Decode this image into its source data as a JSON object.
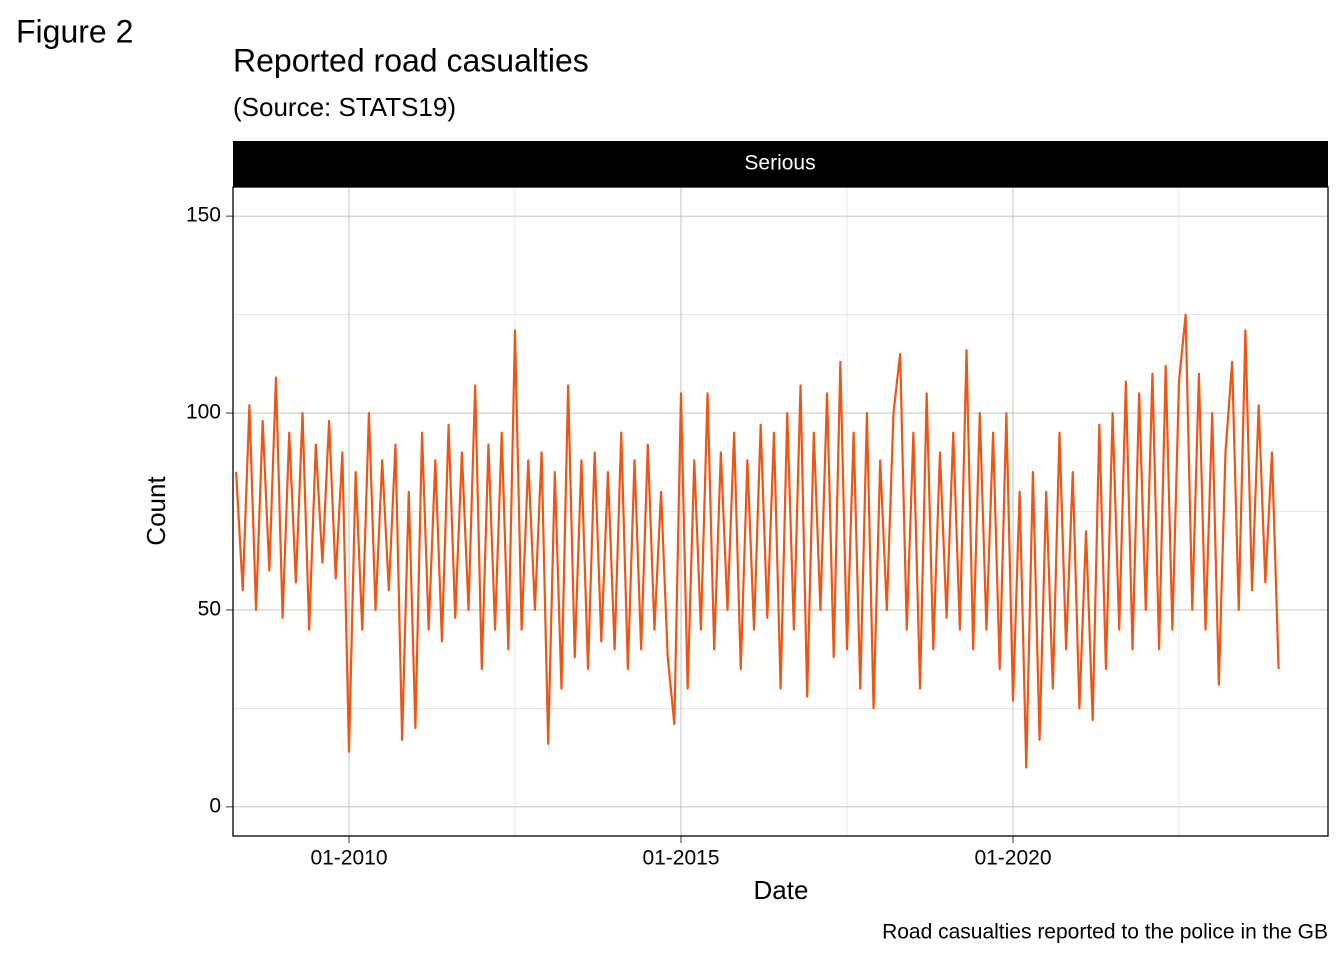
{
  "figure_label": "Figure 2",
  "chart_data": {
    "type": "line",
    "title": "Reported road casualties",
    "subtitle": "(Source: STATS19)",
    "facet": "Serious",
    "xlabel": "Date",
    "ylabel": "Count",
    "caption": "Road casualties reported to the police in the GB",
    "xlim": [
      2008.253,
      2024.744
    ],
    "ylim": [
      -7.4,
      157.4
    ],
    "xticks": [
      {
        "value": 2010,
        "label": "01-2010"
      },
      {
        "value": 2015,
        "label": "01-2015"
      },
      {
        "value": 2020,
        "label": "01-2020"
      }
    ],
    "xminorticks": [
      2012.5,
      2017.5,
      2022.5
    ],
    "yticks": [
      0,
      50,
      100,
      150
    ],
    "yminorticks": [
      25,
      75,
      125
    ],
    "grid": true,
    "series": [
      {
        "name": "Serious",
        "color": "#ec5616",
        "x": [
          2008.3,
          2008.4,
          2008.5,
          2008.6,
          2008.7,
          2008.8,
          2008.9,
          2009.0,
          2009.1,
          2009.2,
          2009.3,
          2009.4,
          2009.5,
          2009.6,
          2009.7,
          2009.8,
          2009.9,
          2010.0,
          2010.1,
          2010.2,
          2010.3,
          2010.4,
          2010.5,
          2010.6,
          2010.7,
          2010.8,
          2010.9,
          2011.0,
          2011.1,
          2011.2,
          2011.3,
          2011.4,
          2011.5,
          2011.6,
          2011.7,
          2011.8,
          2011.9,
          2012.0,
          2012.1,
          2012.2,
          2012.3,
          2012.4,
          2012.5,
          2012.6,
          2012.7,
          2012.8,
          2012.9,
          2013.0,
          2013.1,
          2013.2,
          2013.3,
          2013.4,
          2013.5,
          2013.6,
          2013.7,
          2013.8,
          2013.9,
          2014.0,
          2014.1,
          2014.2,
          2014.3,
          2014.4,
          2014.5,
          2014.6,
          2014.7,
          2014.8,
          2014.9,
          2015.0,
          2015.1,
          2015.2,
          2015.3,
          2015.4,
          2015.5,
          2015.6,
          2015.7,
          2015.8,
          2015.9,
          2016.0,
          2016.1,
          2016.2,
          2016.3,
          2016.4,
          2016.5,
          2016.6,
          2016.7,
          2016.8,
          2016.9,
          2017.0,
          2017.1,
          2017.2,
          2017.3,
          2017.4,
          2017.5,
          2017.6,
          2017.7,
          2017.8,
          2017.9,
          2018.0,
          2018.1,
          2018.2,
          2018.3,
          2018.4,
          2018.5,
          2018.6,
          2018.7,
          2018.8,
          2018.9,
          2019.0,
          2019.1,
          2019.2,
          2019.3,
          2019.4,
          2019.5,
          2019.6,
          2019.7,
          2019.8,
          2019.9,
          2020.0,
          2020.1,
          2020.2,
          2020.3,
          2020.4,
          2020.5,
          2020.6,
          2020.7,
          2020.8,
          2020.9,
          2021.0,
          2021.1,
          2021.2,
          2021.3,
          2021.4,
          2021.5,
          2021.6,
          2021.7,
          2021.8,
          2021.9,
          2022.0,
          2022.1,
          2022.2,
          2022.3,
          2022.4,
          2022.5,
          2022.6,
          2022.7,
          2022.8,
          2022.9,
          2023.0,
          2023.1,
          2023.2,
          2023.3,
          2023.4,
          2023.5,
          2023.6,
          2023.7,
          2023.8,
          2023.9,
          2024.0
        ],
        "values": [
          85,
          55,
          102,
          50,
          98,
          60,
          109,
          48,
          95,
          57,
          100,
          45,
          92,
          62,
          98,
          58,
          90,
          14,
          85,
          45,
          100,
          50,
          88,
          55,
          92,
          17,
          80,
          20,
          95,
          45,
          88,
          42,
          97,
          48,
          90,
          50,
          107,
          35,
          92,
          45,
          95,
          40,
          121,
          45,
          88,
          50,
          90,
          16,
          85,
          30,
          107,
          38,
          88,
          35,
          90,
          42,
          85,
          40,
          95,
          35,
          88,
          40,
          92,
          45,
          80,
          38,
          21,
          105,
          30,
          88,
          45,
          105,
          40,
          90,
          50,
          95,
          35,
          88,
          45,
          97,
          48,
          95,
          30,
          100,
          45,
          107,
          28,
          95,
          50,
          105,
          38,
          113,
          40,
          95,
          30,
          100,
          25,
          88,
          50,
          100,
          115,
          45,
          95,
          30,
          105,
          40,
          90,
          48,
          95,
          45,
          116,
          40,
          100,
          45,
          95,
          35,
          100,
          27,
          80,
          10,
          85,
          17,
          80,
          30,
          95,
          40,
          85,
          25,
          70,
          22,
          97,
          35,
          100,
          45,
          108,
          40,
          105,
          50,
          110,
          40,
          112,
          45,
          108,
          125,
          50,
          110,
          45,
          100,
          31,
          90,
          113,
          50,
          121,
          55,
          102,
          57,
          90,
          35
        ]
      }
    ]
  }
}
